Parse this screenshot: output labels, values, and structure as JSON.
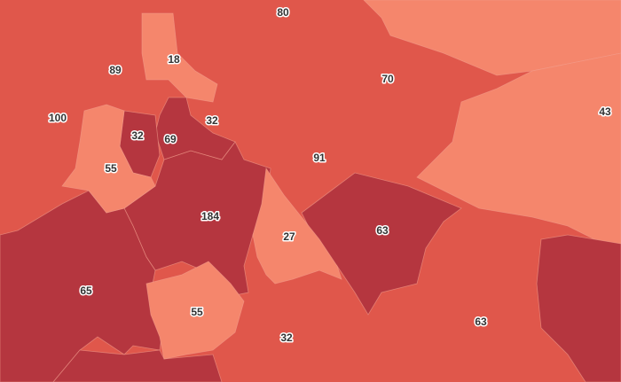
{
  "map": {
    "colors": {
      "low": "#f5866c",
      "mid": "#e0574b",
      "high": "#b5363f"
    },
    "labels": [
      "80",
      "89",
      "18",
      "70",
      "100",
      "32",
      "69",
      "32",
      "43",
      "55",
      "91",
      "184",
      "27",
      "63",
      "65",
      "55",
      "63",
      "32"
    ]
  }
}
